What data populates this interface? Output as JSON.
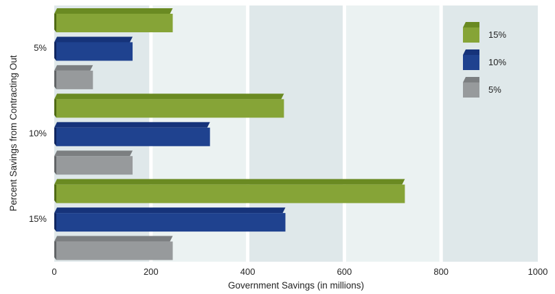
{
  "chart_data": {
    "type": "bar",
    "orientation": "horizontal",
    "categories": [
      "5%",
      "10%",
      "15%"
    ],
    "series": [
      {
        "name": "15%",
        "values": [
          245,
          475,
          725
        ]
      },
      {
        "name": "10%",
        "values": [
          162,
          322,
          478
        ]
      },
      {
        "name": "5%",
        "values": [
          80,
          162,
          245
        ]
      }
    ],
    "xlabel": "Government Savings (in millions)",
    "ylabel": "Percent Savings from Contracting Out",
    "xlim": [
      0,
      1000
    ],
    "xticks": [
      "0",
      "200",
      "400",
      "600",
      "800",
      "1000"
    ],
    "grid": "alternating vertical bands",
    "legend": "top-right"
  },
  "colors": {
    "15%": {
      "front": "#86a437",
      "top": "#6a8a22",
      "side": "#4f6a14"
    },
    "10%": {
      "front": "#1f428f",
      "top": "#16337a",
      "side": "#0f2560"
    },
    "5%": {
      "front": "#979a9c",
      "top": "#7c7f81",
      "side": "#616466"
    },
    "band_dark": "#dfe8ea",
    "band_light": "#ebf2f2"
  }
}
